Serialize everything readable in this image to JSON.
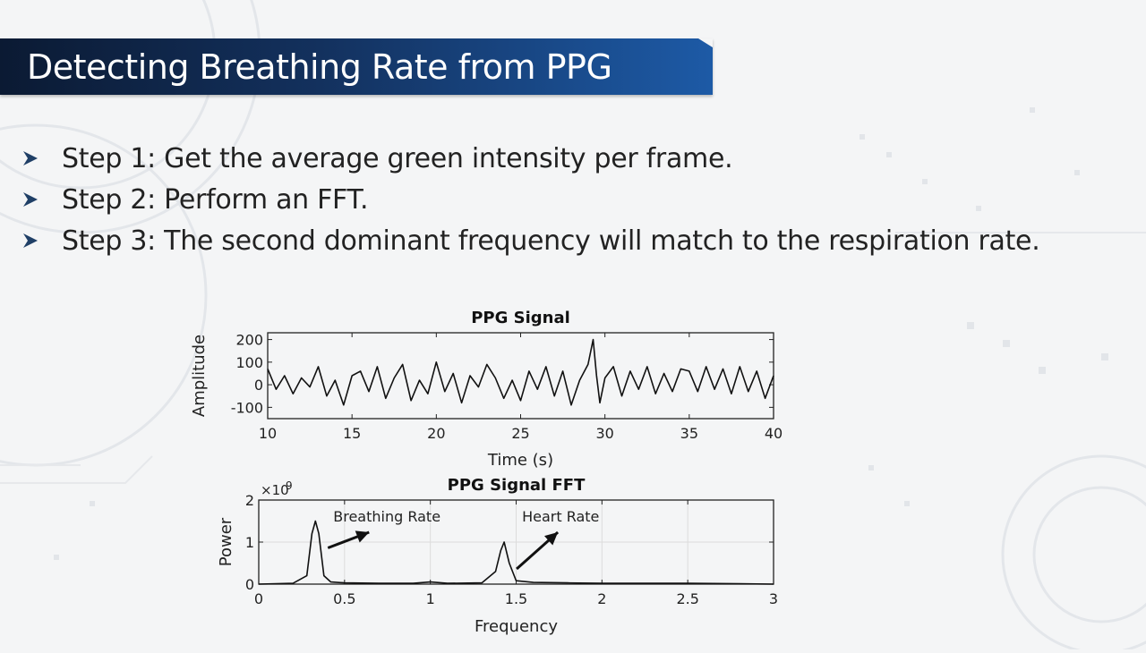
{
  "slide": {
    "title": "Detecting Breathing Rate from PPG",
    "bullets": [
      "Step 1: Get the average green intensity per frame.",
      "Step 2: Perform an FFT.",
      "Step 3: The second dominant frequency will match to the respiration rate."
    ],
    "colors": {
      "title_bar_dark": "#0b1a33",
      "title_bar_light": "#1d5aa6",
      "text": "#222222",
      "bullet_arrow": "#1f3f66"
    },
    "icons": {
      "bullet": "chevron-right-icon"
    }
  },
  "chart_data": [
    {
      "type": "line",
      "title": "PPG Signal",
      "xlabel": "Time (s)",
      "ylabel": "Amplitude",
      "xlim": [
        10,
        40
      ],
      "ylim": [
        -150,
        230
      ],
      "xticks": [
        10,
        15,
        20,
        25,
        30,
        35,
        40
      ],
      "yticks": [
        -100,
        0,
        100,
        200
      ],
      "grid": false,
      "series": [
        {
          "x": [
            10,
            10.5,
            11,
            11.5,
            12,
            12.5,
            13,
            13.5,
            14,
            14.5,
            15,
            15.5,
            16,
            16.5,
            17,
            17.5,
            18,
            18.5,
            19,
            19.5,
            20,
            20.5,
            21,
            21.5,
            22,
            22.5,
            23,
            23.5,
            24,
            24.5,
            25,
            25.5,
            26,
            26.5,
            27,
            27.5,
            28,
            28.5,
            29,
            29.3,
            29.5,
            29.7,
            30,
            30.5,
            31,
            31.5,
            32,
            32.5,
            33,
            33.5,
            34,
            34.5,
            35,
            35.5,
            36,
            36.5,
            37,
            37.5,
            38,
            38.5,
            39,
            39.5,
            40
          ],
          "y": [
            70,
            -20,
            40,
            -40,
            30,
            -10,
            80,
            -50,
            20,
            -90,
            40,
            60,
            -30,
            80,
            -60,
            30,
            90,
            -70,
            20,
            -40,
            100,
            -30,
            50,
            -80,
            40,
            -10,
            90,
            30,
            -60,
            20,
            -70,
            60,
            -20,
            80,
            -50,
            60,
            -90,
            20,
            90,
            200,
            40,
            -80,
            30,
            80,
            -50,
            60,
            -20,
            80,
            -40,
            50,
            -30,
            70,
            60,
            -30,
            80,
            -20,
            70,
            -40,
            80,
            -30,
            60,
            -60,
            40
          ]
        }
      ]
    },
    {
      "type": "line",
      "title": "PPG Signal FFT",
      "xlabel": "Frequency",
      "ylabel": "Power",
      "y_multiplier": "×10^9",
      "xlim": [
        0,
        3
      ],
      "ylim": [
        0,
        2
      ],
      "xticks": [
        0,
        0.5,
        1,
        1.5,
        2,
        2.5,
        3
      ],
      "xtick_labels": [
        "0",
        "0.5",
        "1",
        "1.5",
        "2",
        "2.5",
        "3"
      ],
      "yticks": [
        0,
        1,
        2
      ],
      "grid": true,
      "series": [
        {
          "x": [
            0,
            0.2,
            0.28,
            0.31,
            0.33,
            0.35,
            0.38,
            0.42,
            0.5,
            0.7,
            0.9,
            1.0,
            1.1,
            1.3,
            1.38,
            1.41,
            1.43,
            1.46,
            1.5,
            1.6,
            1.8,
            2.0,
            2.2,
            2.5,
            2.8,
            3.0
          ],
          "y": [
            0,
            0.02,
            0.2,
            1.2,
            1.5,
            1.2,
            0.2,
            0.05,
            0.03,
            0.02,
            0.02,
            0.05,
            0.02,
            0.03,
            0.3,
            0.8,
            1.0,
            0.5,
            0.08,
            0.04,
            0.03,
            0.02,
            0.02,
            0.02,
            0.01,
            0.0
          ]
        }
      ],
      "annotations": [
        {
          "text": "Breathing Rate",
          "x": 0.33,
          "y": 1.5
        },
        {
          "text": "Heart Rate",
          "x": 1.43,
          "y": 1.0
        }
      ]
    }
  ]
}
